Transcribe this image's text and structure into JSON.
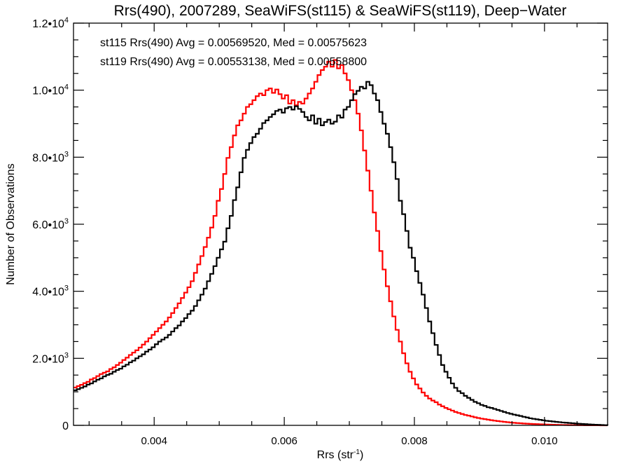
{
  "chart_data": {
    "type": "line",
    "style": "histogram-step",
    "title": "Rrs(490), 2007289, SeaWiFS(st115) & SeaWiFS(st119), Deep−Water",
    "xlabel": "Rrs (str",
    "xlabel_sup": "-1",
    "xlabel_end": ")",
    "ylabel": "Number of Observations",
    "xlim": [
      0.00276,
      0.01097
    ],
    "ylim": [
      0,
      12000
    ],
    "grid": false,
    "x_ticks": [
      {
        "value": 0.004,
        "label": "0.004"
      },
      {
        "value": 0.006,
        "label": "0.006"
      },
      {
        "value": 0.008,
        "label": "0.008"
      },
      {
        "value": 0.01,
        "label": "0.010"
      }
    ],
    "x_minor_step": 0.0005,
    "y_ticks": [
      {
        "value": 0,
        "mantissa": "0",
        "exp": ""
      },
      {
        "value": 2000,
        "mantissa": "2.0•10",
        "exp": "3"
      },
      {
        "value": 4000,
        "mantissa": "4.0•10",
        "exp": "3"
      },
      {
        "value": 6000,
        "mantissa": "6.0•10",
        "exp": "3"
      },
      {
        "value": 8000,
        "mantissa": "8.0•10",
        "exp": "3"
      },
      {
        "value": 10000,
        "mantissa": "1.0•10",
        "exp": "4"
      },
      {
        "value": 12000,
        "mantissa": "1.2•10",
        "exp": "4"
      }
    ],
    "y_minor_step": 500,
    "legend_position": "top-left",
    "annotations": [
      {
        "text": "st115 Rrs(490) Avg = 0.00569520, Med = 0.00575623",
        "color": "#000000"
      },
      {
        "text": "st119 Rrs(490) Avg = 0.00553138, Med = 0.00558800",
        "color": "#ff0000"
      }
    ],
    "bin_start": 0.00276,
    "bin_width": 5e-05,
    "series": [
      {
        "name": "st115",
        "color": "#000000",
        "values": [
          1045,
          1080,
          1120,
          1160,
          1215,
          1250,
          1310,
          1360,
          1400,
          1460,
          1505,
          1540,
          1600,
          1650,
          1690,
          1760,
          1810,
          1880,
          1930,
          2000,
          2060,
          2120,
          2200,
          2260,
          2330,
          2420,
          2500,
          2560,
          2620,
          2700,
          2800,
          2900,
          2980,
          3100,
          3200,
          3320,
          3420,
          3560,
          3730,
          3900,
          4080,
          4300,
          4520,
          4750,
          5000,
          5250,
          5480,
          5880,
          6250,
          6720,
          7100,
          7550,
          7980,
          8220,
          8420,
          8600,
          8700,
          8850,
          9020,
          9100,
          9200,
          9280,
          9380,
          9420,
          9330,
          9460,
          9500,
          9420,
          9520,
          9440,
          9350,
          9200,
          9100,
          9250,
          9000,
          9150,
          8950,
          9050,
          9120,
          9000,
          9060,
          9250,
          9180,
          9420,
          9500,
          9700,
          9880,
          9980,
          10100,
          10050,
          10250,
          10150,
          9900,
          9700,
          9350,
          9000,
          8700,
          8300,
          7850,
          7350,
          6700,
          6300,
          5800,
          5300,
          5000,
          4600,
          4250,
          3900,
          3500,
          3100,
          2750,
          2400,
          2100,
          1800,
          1600,
          1420,
          1250,
          1120,
          1020,
          960,
          880,
          820,
          760,
          700,
          660,
          610,
          580,
          540,
          520,
          490,
          460,
          430,
          400,
          370,
          345,
          320,
          300,
          280,
          255,
          235,
          210,
          195,
          180,
          165,
          150,
          135,
          125,
          115,
          105,
          95,
          85,
          78,
          70,
          62,
          55,
          48,
          42,
          36,
          30,
          25,
          20,
          15,
          10,
          6,
          3,
          1,
          0
        ]
      },
      {
        "name": "st119",
        "color": "#ff0000",
        "values": [
          1129,
          1170,
          1210,
          1260,
          1300,
          1370,
          1410,
          1470,
          1530,
          1570,
          1610,
          1680,
          1730,
          1800,
          1870,
          1950,
          2020,
          2100,
          2170,
          2240,
          2320,
          2410,
          2500,
          2600,
          2700,
          2800,
          2900,
          3000,
          3100,
          3220,
          3350,
          3500,
          3640,
          3800,
          3960,
          4120,
          4300,
          4550,
          4800,
          5050,
          5320,
          5600,
          5900,
          6250,
          6700,
          7050,
          7500,
          7980,
          8300,
          8650,
          8950,
          9100,
          9300,
          9500,
          9580,
          9700,
          9820,
          9900,
          9850,
          10000,
          10050,
          9920,
          10020,
          9880,
          9750,
          9850,
          9600,
          9700,
          9550,
          9650,
          9600,
          9750,
          9900,
          10050,
          10250,
          10450,
          10600,
          10700,
          10850,
          10700,
          10900,
          10650,
          10750,
          10500,
          10300,
          10000,
          9700,
          9300,
          8800,
          8200,
          7600,
          7000,
          6350,
          5800,
          5200,
          4650,
          4150,
          3700,
          3250,
          2850,
          2500,
          2150,
          1850,
          1600,
          1400,
          1220,
          1100,
          980,
          880,
          800,
          740,
          690,
          620,
          570,
          520,
          480,
          440,
          400,
          370,
          340,
          310,
          290,
          265,
          240,
          220,
          200,
          185,
          170,
          155,
          140,
          128,
          116,
          104,
          94,
          84,
          75,
          68,
          62,
          55,
          50,
          45,
          40,
          36,
          32,
          28,
          25,
          22,
          19,
          16,
          14,
          12,
          10,
          8,
          7,
          6,
          5,
          4,
          3,
          2,
          2,
          1,
          1,
          0,
          0,
          0
        ]
      }
    ]
  }
}
